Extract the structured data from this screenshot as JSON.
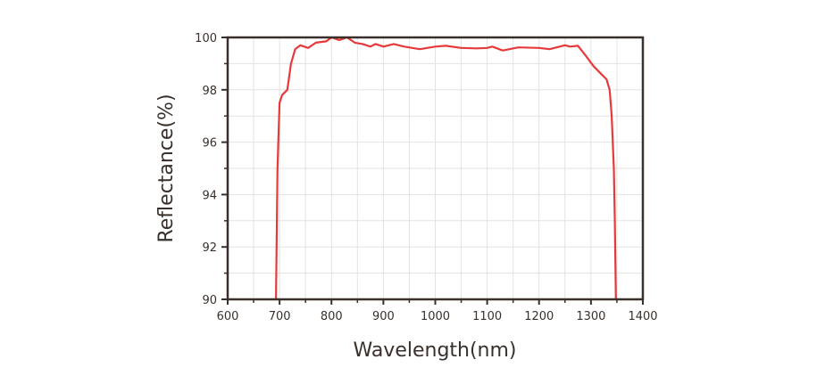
{
  "chart_data": {
    "type": "line",
    "title": "",
    "xlabel": "Wavelength(nm)",
    "ylabel": "Reflectance(%)",
    "xlim": [
      600,
      1400
    ],
    "ylim": [
      90,
      100
    ],
    "xticks": [
      "600",
      "700",
      "800",
      "900",
      "1000",
      "1100",
      "1200",
      "1300",
      "1400"
    ],
    "yticks": [
      "90",
      "92",
      "94",
      "96",
      "98",
      "100"
    ],
    "grid": true,
    "line_color": "#e8393a",
    "series": [
      {
        "x": [
          693,
          696,
          700,
          705,
          715,
          722,
          730,
          740,
          755,
          770,
          790,
          800,
          815,
          830,
          845,
          860,
          875,
          885,
          900,
          920,
          940,
          970,
          1000,
          1020,
          1050,
          1080,
          1100,
          1110,
          1130,
          1160,
          1200,
          1220,
          1250,
          1260,
          1275,
          1290,
          1305,
          1320,
          1330,
          1336,
          1340,
          1344,
          1346,
          1348
        ],
        "y": [
          90,
          95,
          97.5,
          97.8,
          98.0,
          99.0,
          99.55,
          99.7,
          99.6,
          99.8,
          99.85,
          100,
          99.9,
          100,
          99.8,
          99.75,
          99.65,
          99.75,
          99.65,
          99.75,
          99.65,
          99.55,
          99.65,
          99.68,
          99.6,
          99.58,
          99.6,
          99.65,
          99.5,
          99.62,
          99.6,
          99.55,
          99.7,
          99.65,
          99.68,
          99.3,
          98.9,
          98.6,
          98.4,
          98.0,
          97.0,
          95.0,
          93.0,
          90
        ]
      }
    ]
  }
}
